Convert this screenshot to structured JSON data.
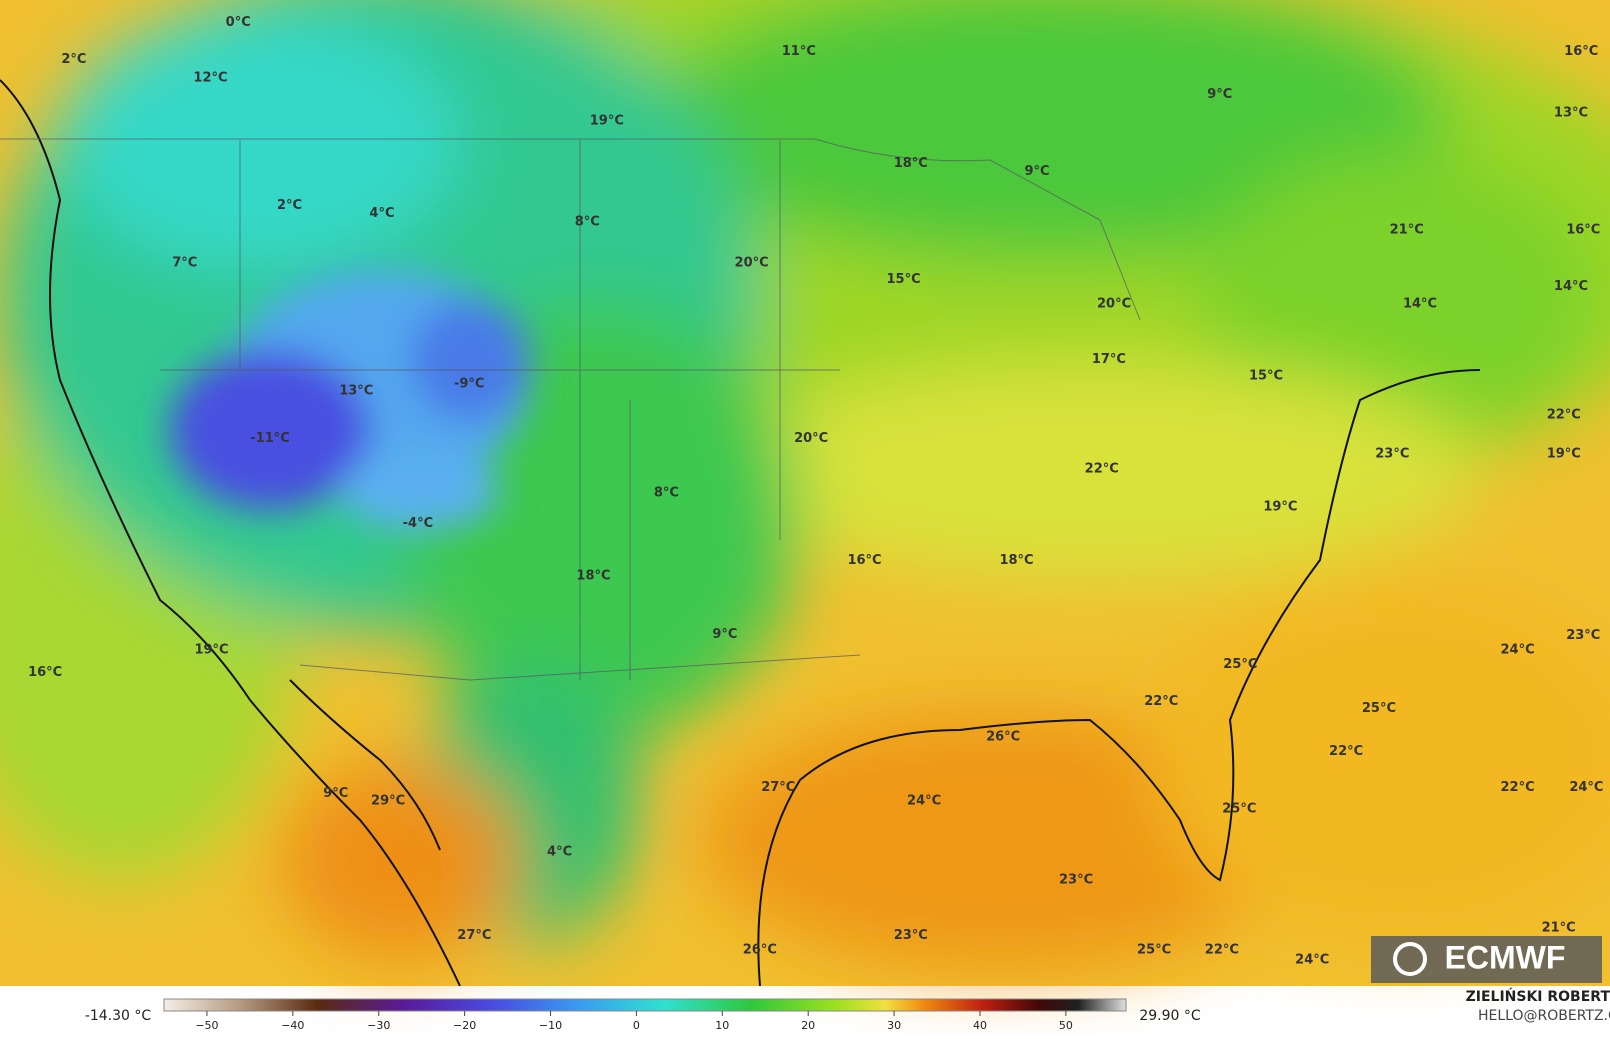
{
  "map": {
    "labels": [
      "0°C",
      "2°C",
      "12°C",
      "11°C",
      "19°C",
      "16°C",
      "9°C",
      "13°C",
      "18°C",
      "9°C",
      "2°C",
      "4°C",
      "8°C",
      "21°C",
      "16°C",
      "7°C",
      "20°C",
      "15°C",
      "20°C",
      "14°C",
      "14°C",
      "17°C",
      "13°C",
      "-9°C",
      "15°C",
      "22°C",
      "-11°C",
      "20°C",
      "23°C",
      "19°C",
      "22°C",
      "8°C",
      "19°C",
      "-4°C",
      "16°C",
      "18°C",
      "18°C",
      "9°C",
      "24°C",
      "23°C",
      "16°C",
      "19°C",
      "25°C",
      "22°C",
      "25°C",
      "26°C",
      "22°C",
      "27°C",
      "24°C",
      "22°C",
      "24°C",
      "9°C",
      "29°C",
      "25°C",
      "4°C",
      "23°C",
      "27°C",
      "23°C",
      "21°C",
      "26°C",
      "25°C",
      "22°C",
      "24°C"
    ],
    "logo": "ECMWF"
  },
  "colorbar": {
    "min_label": "-14.30 °C",
    "max_label": "29.90 °C",
    "ticks": [
      {
        "value": -50,
        "label": "−50"
      },
      {
        "value": -40,
        "label": "−40"
      },
      {
        "value": -30,
        "label": "−30"
      },
      {
        "value": -20,
        "label": "−20"
      },
      {
        "value": -10,
        "label": "−10"
      },
      0,
      10,
      20,
      30,
      40,
      50
    ],
    "range": [
      -55,
      57
    ]
  },
  "credits": {
    "author": "ZIELIŃSKI ROBERT",
    "contact": "HELLO@ROBERTZ.CO"
  }
}
